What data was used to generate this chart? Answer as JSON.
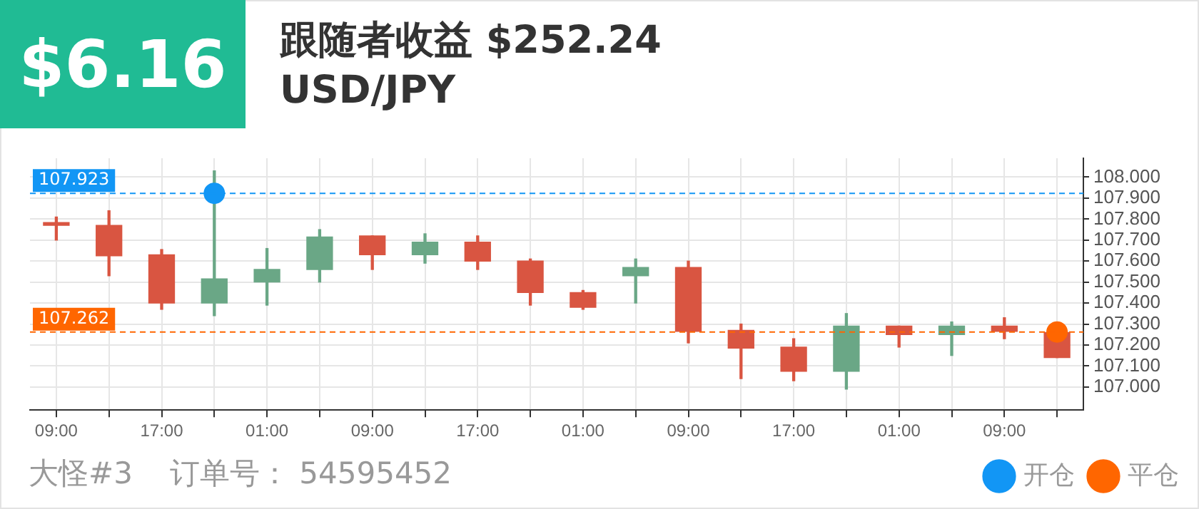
{
  "chart_data": {
    "type": "candlestick",
    "title": "跟随者收益 $252.24",
    "subtitle": "USD/JPY",
    "annotations": [
      "$6.16",
      "大怪#3",
      "订单号： 54595452"
    ],
    "categories": [
      "09:00",
      null,
      "17:00",
      null,
      "01:00",
      null,
      "09:00",
      null,
      "17:00",
      null,
      "01:00",
      null,
      "09:00",
      null,
      "17:00",
      null,
      "01:00",
      null,
      "09:00",
      null
    ],
    "series": [
      {
        "ohlc": [
          [
            107.78,
            107.81,
            107.7,
            107.77
          ],
          [
            107.77,
            107.84,
            107.53,
            107.625
          ],
          [
            107.63,
            107.655,
            107.37,
            107.4
          ],
          [
            107.4,
            108.03,
            107.34,
            107.515
          ],
          [
            107.5,
            107.66,
            107.39,
            107.56
          ],
          [
            107.56,
            107.75,
            107.5,
            107.715
          ],
          [
            107.72,
            107.72,
            107.56,
            107.63
          ],
          [
            107.63,
            107.73,
            107.59,
            107.69
          ],
          [
            107.69,
            107.72,
            107.56,
            107.6
          ],
          [
            107.6,
            107.61,
            107.39,
            107.45
          ],
          [
            107.45,
            107.46,
            107.37,
            107.38
          ],
          [
            107.53,
            107.61,
            107.4,
            107.57
          ],
          [
            107.57,
            107.6,
            107.21,
            107.265
          ],
          [
            107.27,
            107.3,
            107.04,
            107.185
          ],
          [
            107.19,
            107.23,
            107.03,
            107.075
          ],
          [
            107.075,
            107.35,
            106.99,
            107.29
          ],
          [
            107.29,
            107.29,
            107.19,
            107.25
          ],
          [
            107.25,
            107.31,
            107.15,
            107.29
          ],
          [
            107.29,
            107.33,
            107.23,
            107.265
          ],
          [
            107.26,
            107.27,
            107.14,
            107.14
          ]
        ],
        "colors": [
          "#d95541",
          "#d95541",
          "#d95541",
          "#6aa786",
          "#6aa786",
          "#6aa786",
          "#d95541",
          "#6aa786",
          "#d95541",
          "#d95541",
          "#d95541",
          "#6aa786",
          "#d95541",
          "#d95541",
          "#d95541",
          "#6aa786",
          "#d95541",
          "#6aa786",
          "#d95541",
          "#d95541"
        ]
      },
      {
        "type": "scatter",
        "name": "开仓",
        "color": "#1296f5",
        "values": [
          null,
          null,
          null,
          107.923,
          null,
          null,
          null,
          null,
          null,
          null,
          null,
          null,
          null,
          null,
          null,
          null,
          null,
          null,
          null,
          null
        ]
      },
      {
        "type": "scatter",
        "name": "平仓",
        "color": "#ff6600",
        "values": [
          null,
          null,
          null,
          null,
          null,
          null,
          null,
          null,
          null,
          null,
          null,
          null,
          null,
          null,
          null,
          null,
          null,
          null,
          null,
          107.262
        ]
      }
    ],
    "marker": "circle",
    "ref_lines": [
      {
        "axis": "y",
        "value": 107.923,
        "label": "107.923",
        "color": "#1296f5",
        "line_style": "dashed"
      },
      {
        "axis": "y",
        "value": 107.262,
        "label": "107.262",
        "color": "#ff6600",
        "line_style": "dashed"
      }
    ],
    "ylim": [
      106.89,
      108.09
    ],
    "yticks": [
      {
        "value": 107,
        "label": "107.000"
      },
      {
        "value": 107.1,
        "label": "107.100"
      },
      {
        "value": 107.2,
        "label": "107.200"
      },
      {
        "value": 107.3,
        "label": "107.300"
      },
      {
        "value": 107.4,
        "label": "107.400"
      },
      {
        "value": 107.5,
        "label": "107.500"
      },
      {
        "value": 107.6,
        "label": "107.600"
      },
      {
        "value": 107.7,
        "label": "107.700"
      },
      {
        "value": 107.8,
        "label": "107.800"
      },
      {
        "value": 107.9,
        "label": "107.900"
      },
      {
        "value": 108,
        "label": "108.000"
      }
    ],
    "grid": true,
    "legend": "bottom right"
  }
}
